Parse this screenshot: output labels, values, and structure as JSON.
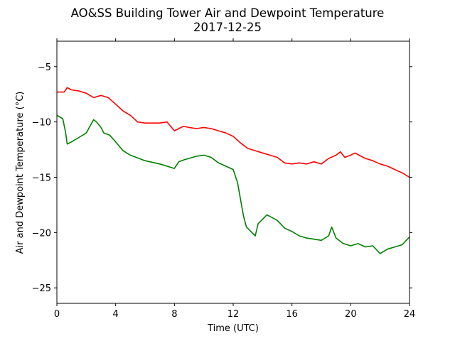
{
  "chart_data": {
    "type": "line",
    "title": "AO&SS Building Tower Air and Dewpoint Temperature",
    "subtitle": "2017-12-25",
    "xlabel": "Time (UTC)",
    "ylabel": "Air and Dewpoint Temperature (°C)",
    "xlim": [
      0,
      24
    ],
    "ylim": [
      -26.4,
      -2.7
    ],
    "xticks": [
      0,
      4,
      8,
      12,
      16,
      20,
      24
    ],
    "xtick_labels": [
      "0",
      "4",
      "8",
      "12",
      "16",
      "20",
      "24"
    ],
    "yticks": [
      -5,
      -10,
      -15,
      -20,
      -25
    ],
    "ytick_labels": [
      "−5",
      "−10",
      "−15",
      "−20",
      "−25"
    ],
    "grid": false,
    "series": [
      {
        "color": "#ff0000",
        "x": [
          0,
          0.5,
          0.7,
          1.0,
          1.5,
          2.0,
          2.5,
          3.0,
          3.5,
          4.0,
          4.5,
          5.0,
          5.5,
          6.0,
          6.5,
          7.0,
          7.5,
          8.0,
          8.3,
          8.6,
          9.0,
          9.5,
          10.0,
          10.5,
          11.0,
          11.5,
          12.0,
          12.5,
          13.0,
          13.5,
          14.0,
          14.5,
          15.0,
          15.5,
          16.0,
          16.5,
          17.0,
          17.5,
          18.0,
          18.5,
          19.0,
          19.3,
          19.6,
          20.0,
          20.3,
          20.7,
          21.0,
          21.5,
          22.0,
          22.5,
          23.0,
          23.5,
          24.0
        ],
        "y": [
          -7.3,
          -7.3,
          -6.9,
          -7.1,
          -7.2,
          -7.4,
          -7.8,
          -7.6,
          -7.8,
          -8.4,
          -9.0,
          -9.4,
          -10.0,
          -10.1,
          -10.1,
          -10.1,
          -10.0,
          -10.8,
          -10.6,
          -10.4,
          -10.5,
          -10.6,
          -10.5,
          -10.6,
          -10.8,
          -11.0,
          -11.3,
          -11.9,
          -12.4,
          -12.6,
          -12.8,
          -13.0,
          -13.2,
          -13.7,
          -13.8,
          -13.7,
          -13.8,
          -13.6,
          -13.8,
          -13.3,
          -13.0,
          -12.7,
          -13.2,
          -13.0,
          -12.8,
          -13.1,
          -13.3,
          -13.5,
          -13.8,
          -14.0,
          -14.3,
          -14.6,
          -15.0
        ]
      },
      {
        "color": "#008000",
        "x": [
          0,
          0.4,
          0.6,
          0.7,
          1.0,
          1.5,
          2.0,
          2.5,
          2.7,
          3.0,
          3.2,
          3.6,
          4.0,
          4.5,
          5.0,
          6.0,
          7.0,
          8.0,
          8.3,
          8.7,
          9.0,
          9.5,
          10.0,
          10.5,
          11.0,
          11.5,
          12.0,
          12.3,
          12.5,
          12.7,
          12.9,
          13.2,
          13.5,
          13.7,
          14.0,
          14.3,
          15.0,
          15.5,
          16.0,
          16.5,
          17.0,
          17.5,
          18.0,
          18.5,
          18.7,
          19.0,
          19.5,
          20.0,
          20.5,
          21.0,
          21.5,
          22.0,
          22.5,
          23.0,
          23.5,
          24.0
        ],
        "y": [
          -9.4,
          -9.7,
          -11.0,
          -12.0,
          -11.8,
          -11.4,
          -11.0,
          -9.8,
          -10.0,
          -10.5,
          -11.0,
          -11.2,
          -11.8,
          -12.6,
          -13.0,
          -13.5,
          -13.8,
          -14.2,
          -13.6,
          -13.4,
          -13.3,
          -13.1,
          -13.0,
          -13.2,
          -13.7,
          -14.0,
          -14.3,
          -15.5,
          -17.0,
          -18.5,
          -19.5,
          -19.9,
          -20.3,
          -19.2,
          -18.8,
          -18.4,
          -18.9,
          -19.6,
          -19.9,
          -20.3,
          -20.5,
          -20.6,
          -20.7,
          -20.3,
          -19.5,
          -20.5,
          -21.0,
          -21.2,
          -21.0,
          -21.3,
          -21.2,
          -21.9,
          -21.5,
          -21.3,
          -21.1,
          -20.4
        ]
      }
    ]
  }
}
